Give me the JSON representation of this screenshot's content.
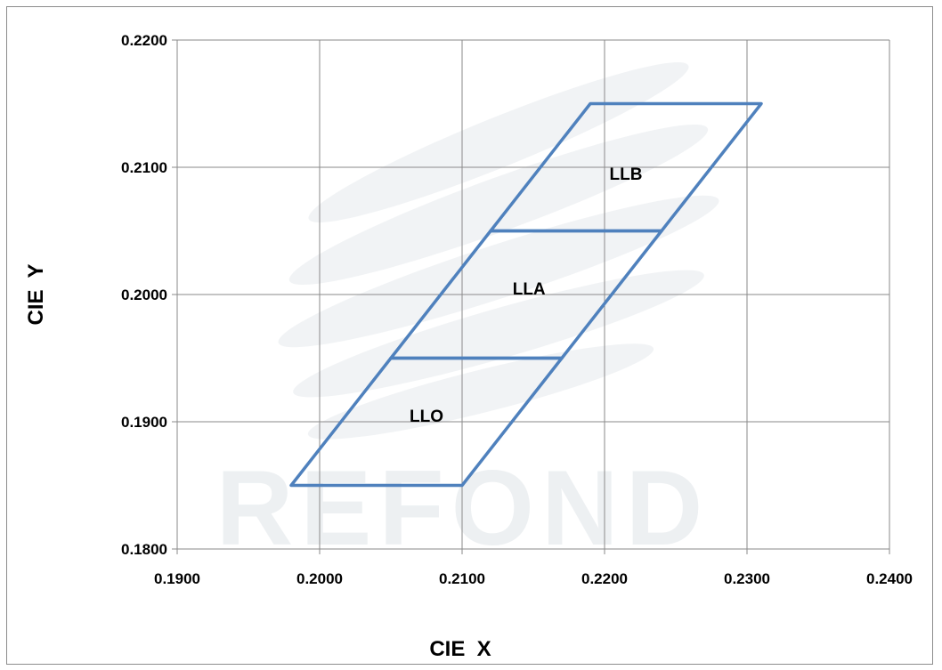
{
  "chart_data": {
    "type": "line",
    "xlabel": "CIE  X",
    "ylabel": "CIE  Y",
    "xlim": [
      0.19,
      0.24
    ],
    "ylim": [
      0.18,
      0.22
    ],
    "x_ticks": [
      "0.1900",
      "0.2000",
      "0.2100",
      "0.2200",
      "0.2300",
      "0.2400"
    ],
    "y_ticks": [
      "0.1800",
      "0.1900",
      "0.2000",
      "0.2100",
      "0.2200"
    ],
    "grid": true,
    "watermark": "REFOND",
    "regions": [
      {
        "label": "LLO",
        "points": [
          [
            0.198,
            0.185
          ],
          [
            0.21,
            0.185
          ],
          [
            0.217,
            0.195
          ],
          [
            0.205,
            0.195
          ]
        ],
        "label_pos": [
          0.2075,
          0.1905
        ]
      },
      {
        "label": "LLA",
        "points": [
          [
            0.205,
            0.195
          ],
          [
            0.217,
            0.195
          ],
          [
            0.224,
            0.205
          ],
          [
            0.212,
            0.205
          ]
        ],
        "label_pos": [
          0.2147,
          0.2005
        ]
      },
      {
        "label": "LLB",
        "points": [
          [
            0.212,
            0.205
          ],
          [
            0.224,
            0.205
          ],
          [
            0.231,
            0.215
          ],
          [
            0.219,
            0.215
          ]
        ],
        "label_pos": [
          0.2215,
          0.2095
        ]
      }
    ],
    "line_color": "#4f81bd"
  }
}
